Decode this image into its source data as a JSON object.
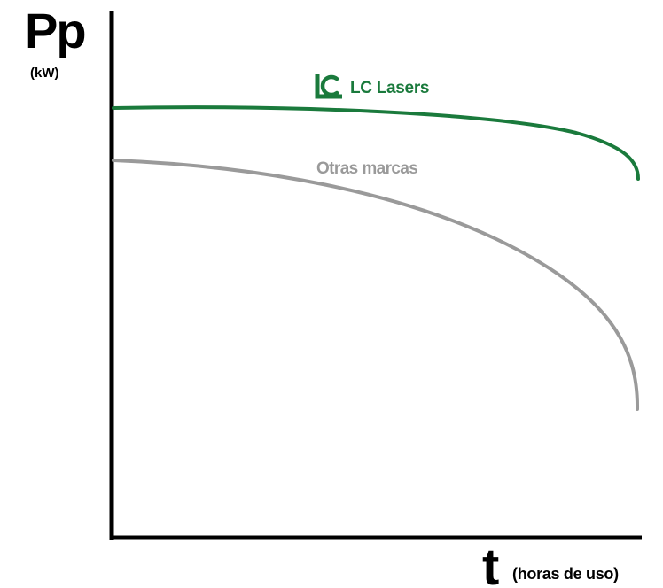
{
  "chart_data": {
    "type": "line",
    "y_axis": {
      "title": "Pp",
      "unit": "(kW)"
    },
    "x_axis": {
      "title": "t",
      "unit": "(horas de uso)"
    },
    "grid": false,
    "series": [
      {
        "name": "LC Lasers",
        "color": "#1a7a3c",
        "icon": "lc-lasers-logo-icon",
        "shape": "stays nearly flat, slight drop at the end",
        "relative_values": [
          1.0,
          0.995,
          0.985,
          0.96,
          0.87
        ]
      },
      {
        "name": "Otras marcas",
        "color": "#9a9a9a",
        "shape": "declines steadily, then drops sharply at the end",
        "relative_values": [
          0.91,
          0.86,
          0.76,
          0.58,
          0.2
        ]
      }
    ]
  }
}
